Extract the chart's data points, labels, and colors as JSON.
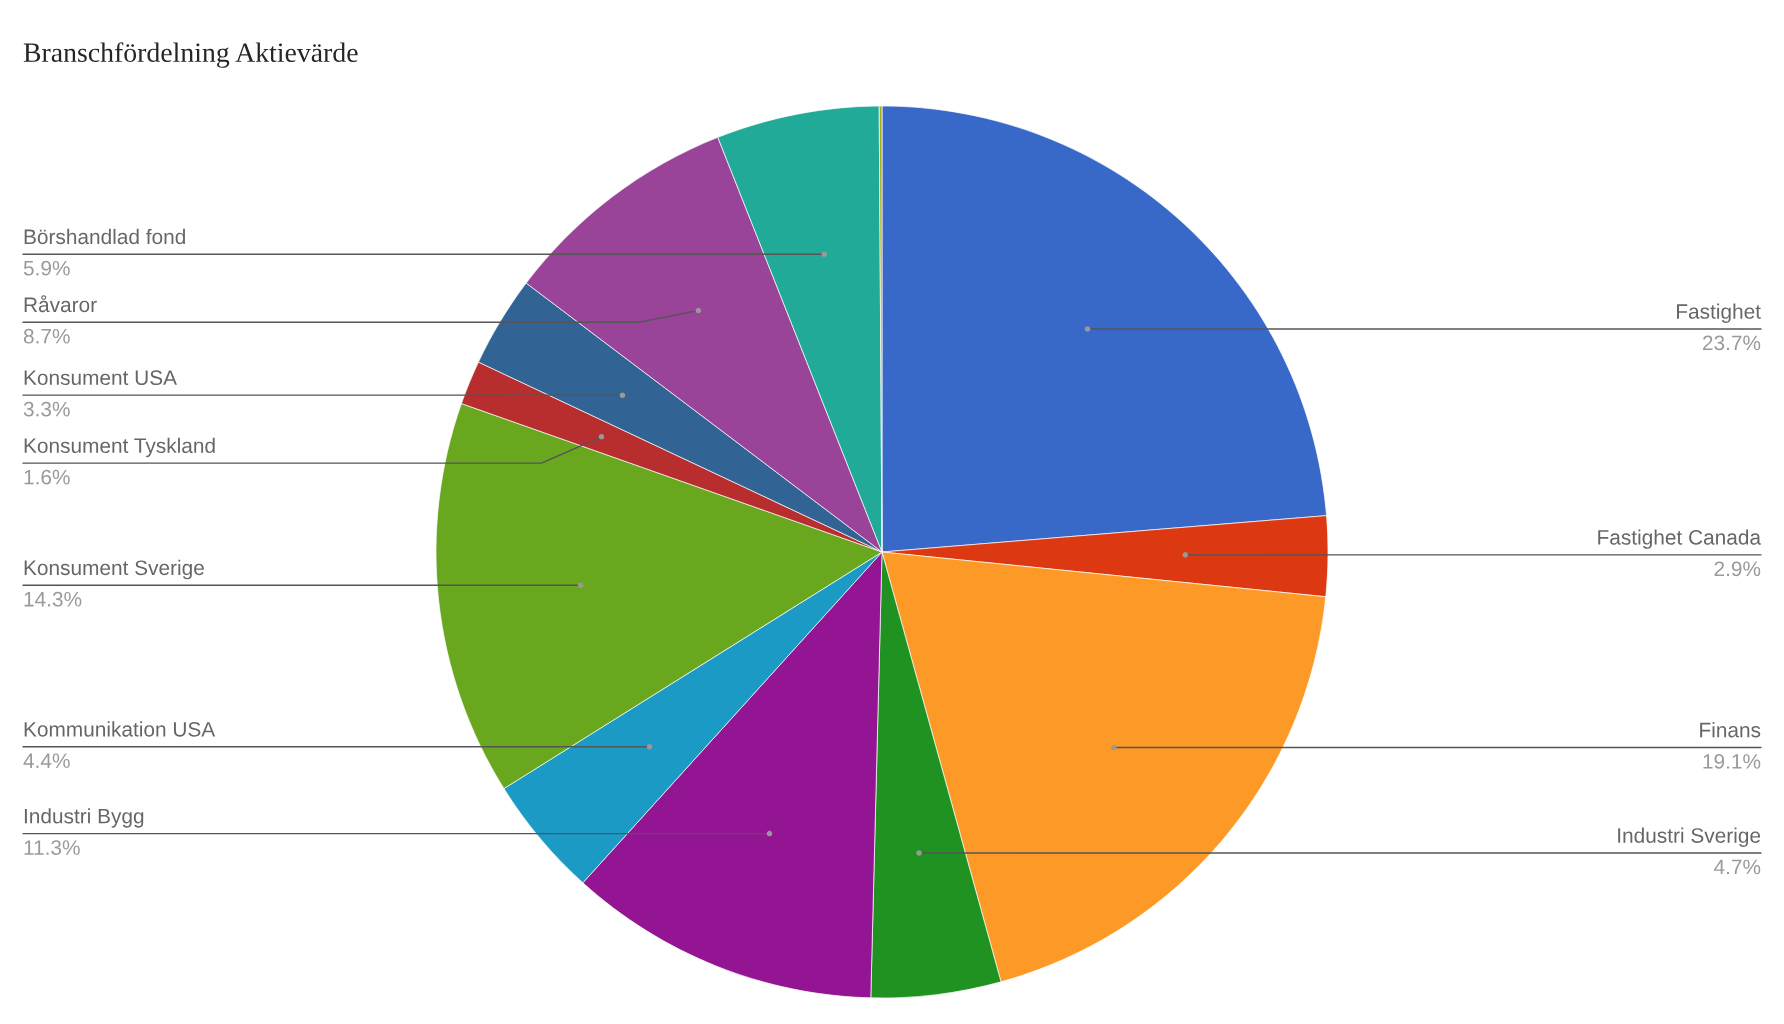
{
  "chart_data": {
    "type": "pie",
    "title": "Branschfördelning Aktievärde",
    "categories": [
      "Fastighet",
      "Fastighet Canada",
      "Finans",
      "Industri Sverige",
      "Industri Bygg",
      "Kommunikation USA",
      "Konsument Sverige",
      "Konsument Tyskland",
      "Konsument USA",
      "Råvaror",
      "Börshandlad fond",
      null
    ],
    "values": [
      23.7,
      2.9,
      19.1,
      4.7,
      11.3,
      4.4,
      14.3,
      1.6,
      3.3,
      8.7,
      5.9,
      0.1
    ],
    "value_labels": [
      "23.7%",
      "2.9%",
      "19.1%",
      "4.7%",
      "11.3%",
      "4.4%",
      "14.3%",
      "1.6%",
      "3.3%",
      "8.7%",
      "5.9%",
      null
    ],
    "colors": [
      "#3869c9",
      "#dc3912",
      "#fd9927",
      "#1f9222",
      "#941593",
      "#1b9ac6",
      "#68a71e",
      "#b82e2e",
      "#316395",
      "#994499",
      "#22aa99",
      "#aaaa11"
    ],
    "legend": false
  }
}
